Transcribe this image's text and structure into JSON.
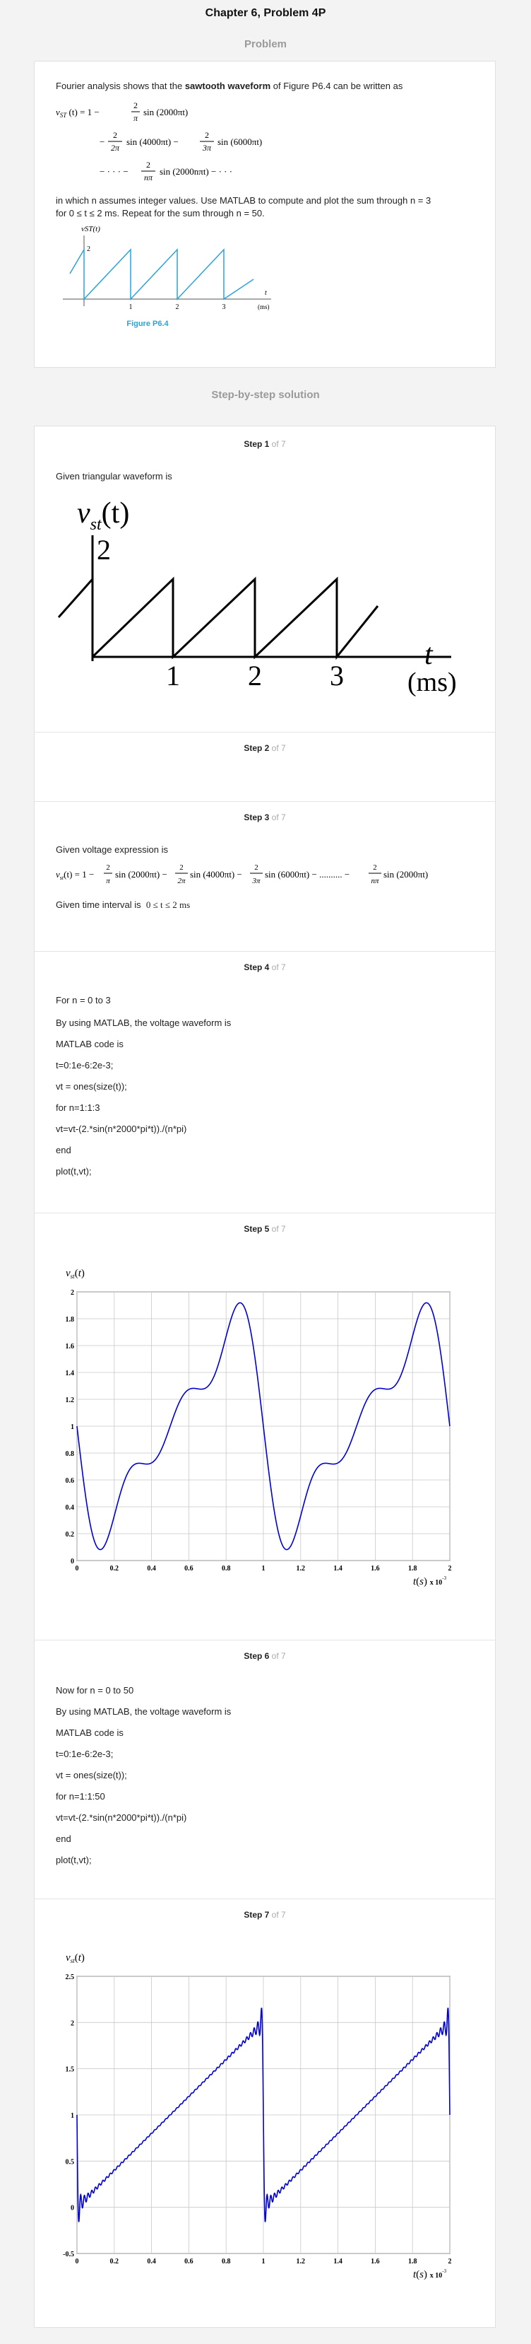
{
  "header": {
    "title": "Chapter 6, Problem 4P"
  },
  "problem": {
    "heading": "Problem",
    "intro_pre": "Fourier analysis shows that the ",
    "intro_bold": "sawtooth waveform",
    "intro_post": " of Figure P6.4 can be written as",
    "eq_lhs": "vST (t) = 1 −",
    "eq_l1": "sin (2000πt)",
    "eq_l2a": "sin (4000πt) −",
    "eq_l2b": "sin (6000πt)",
    "eq_l3": "sin (2000nπt) − · · ·",
    "body1": "in which n assumes integer values. Use MATLAB to compute and plot the sum through n = 3",
    "body2": "for 0 ≤ t ≤ 2 ms. Repeat for the sum through n = 50.",
    "figure_caption": "Figure P6.4",
    "fig_ylabel": "vST(t)",
    "fig_two": "2",
    "fig_ticks": [
      "1",
      "2",
      "3"
    ],
    "fig_t": "t",
    "fig_unit": "(ms)"
  },
  "solution": {
    "heading": "Step-by-step solution"
  },
  "steps": [
    {
      "label": "Step 1",
      "of": "of 7",
      "text": "Given triangular waveform is",
      "fig": {
        "ylabel": "v",
        "ysub": "st",
        "yarg": "(t)",
        "two": "2",
        "ticks": [
          "1",
          "2",
          "3"
        ],
        "t": "t",
        "unit": "(ms)"
      }
    },
    {
      "label": "Step 2",
      "of": "of 7"
    },
    {
      "label": "Step 3",
      "of": "of 7",
      "text": "Given voltage expression is",
      "eq": "vst(t) = 1 − (2/π) sin(2000πt) − (2/2π) sin(4000πt) − (2/3π) sin(6000πt) − .......... − (2/nπ) sin(2000πt)",
      "interval_label": "Given time interval is",
      "interval": "0 ≤ t ≤ 2 ms"
    },
    {
      "label": "Step 4",
      "of": "of 7",
      "lines": [
        "For  n = 0 to 3",
        "By using MATLAB, the voltage waveform is",
        "MATLAB code is",
        "t=0:1e-6:2e-3;",
        "vt = ones(size(t));",
        "for n=1:1:3",
        "vt=vt-(2.*sin(n*2000*pi*t))./(n*pi)",
        "end",
        "plot(t,vt);"
      ]
    },
    {
      "label": "Step 5",
      "of": "of 7"
    },
    {
      "label": "Step 6",
      "of": "of 7",
      "lines": [
        "Now for  n = 0 to 50",
        "By using MATLAB, the voltage waveform is",
        "MATLAB code is",
        "t=0:1e-6:2e-3;",
        "vt = ones(size(t));",
        "for n=1:1:50",
        "vt=vt-(2.*sin(n*2000*pi*t))./(n*pi)",
        "end",
        "plot(t,vt);"
      ]
    },
    {
      "label": "Step 7",
      "of": "of 7"
    }
  ],
  "chart_data": [
    {
      "type": "line",
      "ylabel": "vst(t)",
      "xlabel": "t(s) x 10^-3",
      "xlim": [
        0,
        2
      ],
      "ylim": [
        0,
        2
      ],
      "xticks": [
        "0",
        "0.2",
        "0.4",
        "0.6",
        "0.8",
        "1",
        "1.2",
        "1.4",
        "1.6",
        "1.8",
        "2"
      ],
      "yticks": [
        "0",
        "0.2",
        "0.4",
        "0.6",
        "0.8",
        "1",
        "1.2",
        "1.4",
        "1.6",
        "1.8",
        "2"
      ],
      "function": "1 - sum_{n=1..3} 2 sin(2000 n pi t)/(n pi)",
      "n_max": 3,
      "color": "#0000d0",
      "grid": true
    },
    {
      "type": "line",
      "ylabel": "vst(t)",
      "xlabel": "t(s) x 10^-3",
      "xlim": [
        0,
        2
      ],
      "ylim": [
        -0.5,
        2.5
      ],
      "xticks": [
        "0",
        "0.2",
        "0.4",
        "0.6",
        "0.8",
        "1",
        "1.2",
        "1.4",
        "1.6",
        "1.8",
        "2"
      ],
      "yticks": [
        "-0.5",
        "0",
        "0.5",
        "1",
        "1.5",
        "2",
        "2.5"
      ],
      "function": "1 - sum_{n=1..50} 2 sin(2000 n pi t)/(n pi)",
      "n_max": 50,
      "color": "#0000d0",
      "grid": true
    }
  ]
}
